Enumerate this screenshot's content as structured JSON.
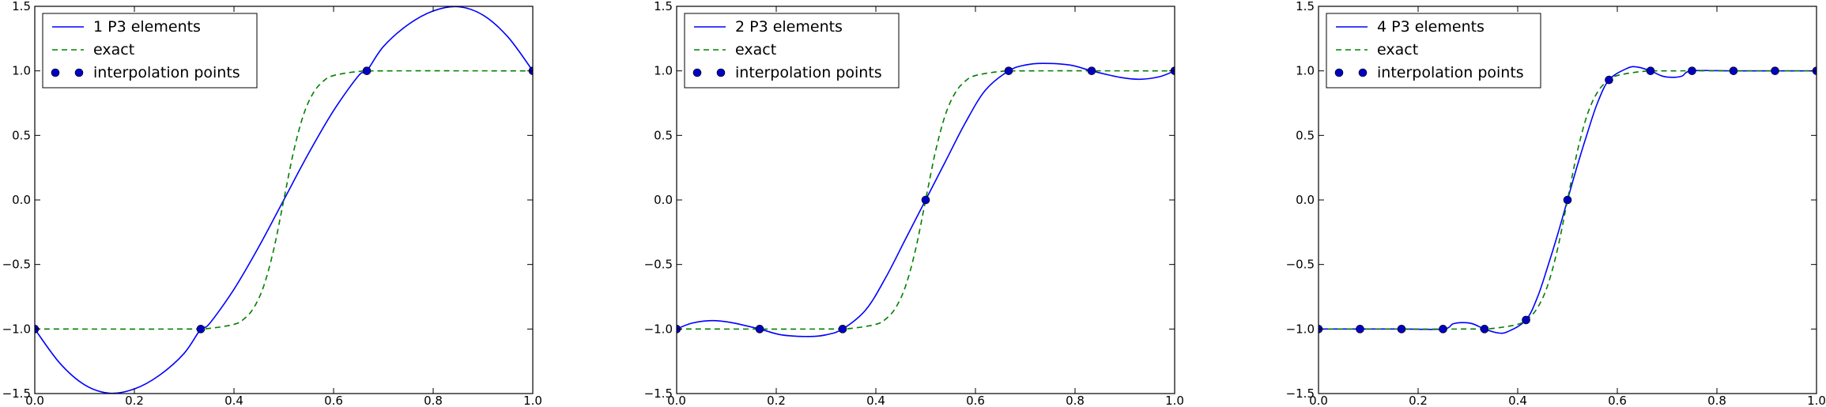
{
  "chart_data": [
    {
      "type": "line",
      "title": "",
      "xlabel": "",
      "ylabel": "",
      "xlim": [
        0.0,
        1.0
      ],
      "ylim": [
        -1.5,
        1.5
      ],
      "x_ticks": [
        "0.0",
        "0.2",
        "0.4",
        "0.6",
        "0.8",
        "1.0"
      ],
      "y_ticks": [
        "−1.5",
        "−1.0",
        "−0.5",
        "0.0",
        "0.5",
        "1.0",
        "1.5"
      ],
      "grid": false,
      "legend_position": "top-left",
      "series": [
        {
          "name": "1 P3 elements",
          "style": "solid",
          "color": "#0000ff",
          "x": [
            0.0,
            0.05,
            0.1,
            0.15,
            0.2,
            0.25,
            0.3,
            0.3333,
            0.35,
            0.4,
            0.45,
            0.5,
            0.55,
            0.6,
            0.65,
            0.6667,
            0.7,
            0.75,
            0.8,
            0.85,
            0.9,
            0.95,
            1.0
          ],
          "y": [
            -1.0,
            -1.263,
            -1.432,
            -1.497,
            -1.464,
            -1.359,
            -1.188,
            -1.0,
            -0.962,
            -0.692,
            -0.362,
            0.0,
            0.362,
            0.692,
            0.962,
            1.0,
            1.188,
            1.359,
            1.464,
            1.497,
            1.432,
            1.263,
            1.0
          ]
        },
        {
          "name": "exact",
          "style": "dashed",
          "color": "#008000",
          "x": [
            0.0,
            0.3,
            0.35,
            0.4,
            0.42,
            0.44,
            0.46,
            0.48,
            0.5,
            0.52,
            0.54,
            0.56,
            0.58,
            0.6,
            0.65,
            0.7,
            1.0
          ],
          "y": [
            -1.0,
            -1.0,
            -0.995,
            -0.964,
            -0.922,
            -0.834,
            -0.664,
            -0.38,
            0.0,
            0.38,
            0.664,
            0.834,
            0.922,
            0.964,
            0.995,
            1.0,
            1.0
          ]
        },
        {
          "name": "interpolation points",
          "style": "markers",
          "color": "#0000bf",
          "x": [
            0.0,
            0.3333,
            0.6667,
            1.0
          ],
          "y": [
            -1.0,
            -1.0,
            1.0,
            1.0
          ]
        }
      ]
    },
    {
      "type": "line",
      "title": "",
      "xlabel": "",
      "ylabel": "",
      "xlim": [
        0.0,
        1.0
      ],
      "ylim": [
        -1.5,
        1.5
      ],
      "x_ticks": [
        "0.0",
        "0.2",
        "0.4",
        "0.6",
        "0.8",
        "1.0"
      ],
      "y_ticks": [
        "−1.5",
        "−1.0",
        "−0.5",
        "0.0",
        "0.5",
        "1.0",
        "1.5"
      ],
      "grid": false,
      "legend_position": "top-left",
      "series": [
        {
          "name": "2 P3 elements",
          "style": "solid",
          "color": "#0000ff",
          "x": [
            0.0,
            0.03,
            0.07,
            0.11,
            0.1667,
            0.21,
            0.265,
            0.3,
            0.3333,
            0.38,
            0.42,
            0.46,
            0.5,
            0.54,
            0.58,
            0.62,
            0.6667,
            0.7,
            0.735,
            0.79,
            0.8333,
            0.89,
            0.93,
            0.97,
            1.0
          ],
          "y": [
            -1.0,
            -0.955,
            -0.935,
            -0.95,
            -1.0,
            -1.045,
            -1.058,
            -1.045,
            -1.0,
            -0.85,
            -0.6,
            -0.3,
            0.0,
            0.3,
            0.6,
            0.85,
            1.0,
            1.045,
            1.058,
            1.045,
            1.0,
            0.95,
            0.935,
            0.955,
            1.0
          ]
        },
        {
          "name": "exact",
          "style": "dashed",
          "color": "#008000",
          "x": [
            0.0,
            0.3,
            0.35,
            0.4,
            0.42,
            0.44,
            0.46,
            0.48,
            0.5,
            0.52,
            0.54,
            0.56,
            0.58,
            0.6,
            0.65,
            0.7,
            1.0
          ],
          "y": [
            -1.0,
            -1.0,
            -0.995,
            -0.964,
            -0.922,
            -0.834,
            -0.664,
            -0.38,
            0.0,
            0.38,
            0.664,
            0.834,
            0.922,
            0.964,
            0.995,
            1.0,
            1.0
          ]
        },
        {
          "name": "interpolation points",
          "style": "markers",
          "color": "#0000bf",
          "x": [
            0.0,
            0.1667,
            0.3333,
            0.5,
            0.6667,
            0.8333,
            1.0
          ],
          "y": [
            -1.0,
            -1.0,
            -1.0,
            0.0,
            1.0,
            1.0,
            1.0
          ]
        }
      ]
    },
    {
      "type": "line",
      "title": "",
      "xlabel": "",
      "ylabel": "",
      "xlim": [
        0.0,
        1.0
      ],
      "ylim": [
        -1.5,
        1.5
      ],
      "x_ticks": [
        "0.0",
        "0.2",
        "0.4",
        "0.6",
        "0.8",
        "1.0"
      ],
      "y_ticks": [
        "−1.5",
        "−1.0",
        "−0.5",
        "0.0",
        "0.5",
        "1.0",
        "1.5"
      ],
      "grid": false,
      "legend_position": "top-left",
      "series": [
        {
          "name": "4 P3 elements",
          "style": "solid",
          "color": "#0000ff",
          "x": [
            0.0,
            0.0833,
            0.1667,
            0.25,
            0.27,
            0.29,
            0.31,
            0.3333,
            0.36,
            0.38,
            0.4167,
            0.44,
            0.46,
            0.48,
            0.5,
            0.52,
            0.54,
            0.56,
            0.5833,
            0.62,
            0.64,
            0.6667,
            0.69,
            0.71,
            0.73,
            0.75,
            0.8333,
            0.9167,
            1.0
          ],
          "y": [
            -1.0,
            -1.0,
            -1.0,
            -1.0,
            -0.96,
            -0.95,
            -0.96,
            -1.0,
            -1.03,
            -1.02,
            -0.93,
            -0.75,
            -0.52,
            -0.27,
            0.0,
            0.27,
            0.52,
            0.75,
            0.93,
            1.02,
            1.03,
            1.0,
            0.96,
            0.95,
            0.96,
            1.0,
            1.0,
            1.0,
            1.0
          ]
        },
        {
          "name": "exact",
          "style": "dashed",
          "color": "#008000",
          "x": [
            0.0,
            0.3,
            0.35,
            0.4,
            0.42,
            0.44,
            0.46,
            0.48,
            0.5,
            0.52,
            0.54,
            0.56,
            0.58,
            0.6,
            0.65,
            0.7,
            1.0
          ],
          "y": [
            -1.0,
            -1.0,
            -0.995,
            -0.964,
            -0.922,
            -0.834,
            -0.664,
            -0.38,
            0.0,
            0.38,
            0.664,
            0.834,
            0.922,
            0.964,
            0.995,
            1.0,
            1.0
          ]
        },
        {
          "name": "interpolation points",
          "style": "markers",
          "color": "#0000bf",
          "x": [
            0.0,
            0.0833,
            0.1667,
            0.25,
            0.3333,
            0.4167,
            0.5,
            0.5833,
            0.6667,
            0.75,
            0.8333,
            0.9167,
            1.0
          ],
          "y": [
            -1.0,
            -1.0,
            -1.0,
            -1.0,
            -1.0,
            -0.93,
            0.0,
            0.93,
            1.0,
            1.0,
            1.0,
            1.0,
            1.0
          ]
        }
      ]
    }
  ]
}
